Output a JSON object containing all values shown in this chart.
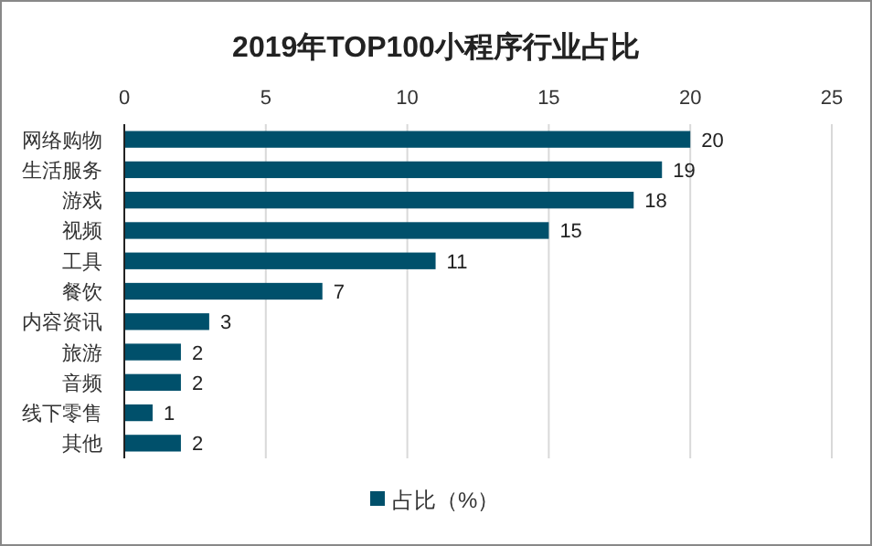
{
  "chart_data": {
    "type": "bar",
    "orientation": "horizontal",
    "title": "2019年TOP100小程序行业占比",
    "categories": [
      "网络购物",
      "生活服务",
      "游戏",
      "视频",
      "工具",
      "餐饮",
      "内容资讯",
      "旅游",
      "音频",
      "线下零售",
      "其他"
    ],
    "series": [
      {
        "name": "占比（%）",
        "color": "#00506b",
        "values": [
          20,
          19,
          18,
          15,
          11,
          7,
          3,
          2,
          2,
          1,
          2
        ]
      }
    ],
    "xlim": [
      0,
      25
    ],
    "xticks": [
      0,
      5,
      10,
      15,
      20,
      25
    ],
    "grid": "x",
    "legend": "bottom",
    "data_labels": true
  }
}
